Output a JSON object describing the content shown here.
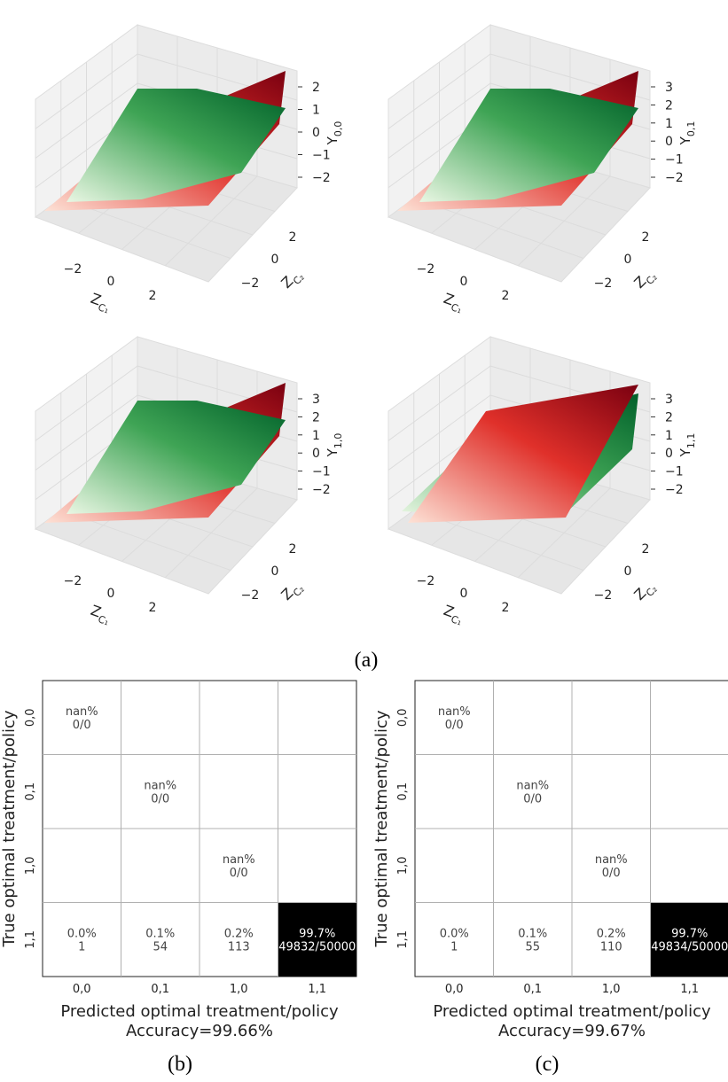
{
  "captions": {
    "a": "(a)",
    "b": "(b)",
    "c": "(c)"
  },
  "surface_plots": [
    {
      "zlabel_main": "Y",
      "zlabel_sub": "0,0",
      "zticks": [
        "2",
        "1",
        "0",
        "−1",
        "−2"
      ]
    },
    {
      "zlabel_main": "Y",
      "zlabel_sub": "0,1",
      "zticks": [
        "3",
        "2",
        "1",
        "0",
        "−1",
        "−2"
      ]
    },
    {
      "zlabel_main": "Y",
      "zlabel_sub": "1,0",
      "zticks": [
        "3",
        "2",
        "1",
        "0",
        "−1",
        "−2"
      ]
    },
    {
      "zlabel_main": "Y",
      "zlabel_sub": "1,1",
      "zticks": [
        "3",
        "2",
        "1",
        "0",
        "−1",
        "−2"
      ]
    }
  ],
  "surface_axes": {
    "xlabel_main": "Z",
    "xlabel_sub": "C₁",
    "ylabel_main": "Z",
    "ylabel_sub": "C₂",
    "xticks": [
      "−2",
      "0",
      "2"
    ],
    "yticks": [
      "2",
      "0",
      "−2"
    ]
  },
  "colors": {
    "green_dark": "#00602a",
    "green_mid": "#3fa455",
    "green_light": "#eaf7e4",
    "red_dark": "#7a0010",
    "red_mid": "#e0302a",
    "red_light": "#fde2d6",
    "cell_dark": "#000000",
    "grid": "#b0b0b0",
    "text": "#444444"
  },
  "chart_data": [
    {
      "type": "heatmap",
      "panel": "b",
      "xlabel": "Predicted optimal treatment/policy",
      "ylabel": "True optimal treatment/policy",
      "footer": "Accuracy=99.66%",
      "accuracy": 99.66,
      "categories": [
        "0,0",
        "0,1",
        "1,0",
        "1,1"
      ],
      "cells": [
        {
          "row": 0,
          "col": 0,
          "pct": "nan%",
          "count": "0/0"
        },
        {
          "row": 1,
          "col": 1,
          "pct": "nan%",
          "count": "0/0"
        },
        {
          "row": 2,
          "col": 2,
          "pct": "nan%",
          "count": "0/0"
        },
        {
          "row": 3,
          "col": 0,
          "pct": "0.0%",
          "count": "1"
        },
        {
          "row": 3,
          "col": 1,
          "pct": "0.1%",
          "count": "54"
        },
        {
          "row": 3,
          "col": 2,
          "pct": "0.2%",
          "count": "113"
        },
        {
          "row": 3,
          "col": 3,
          "pct": "99.7%",
          "count": "49832/50000",
          "dark": true
        }
      ]
    },
    {
      "type": "heatmap",
      "panel": "c",
      "xlabel": "Predicted optimal treatment/policy",
      "ylabel": "True optimal treatment/policy",
      "footer": "Accuracy=99.67%",
      "accuracy": 99.67,
      "categories": [
        "0,0",
        "0,1",
        "1,0",
        "1,1"
      ],
      "cells": [
        {
          "row": 0,
          "col": 0,
          "pct": "nan%",
          "count": "0/0"
        },
        {
          "row": 1,
          "col": 1,
          "pct": "nan%",
          "count": "0/0"
        },
        {
          "row": 2,
          "col": 2,
          "pct": "nan%",
          "count": "0/0"
        },
        {
          "row": 3,
          "col": 0,
          "pct": "0.0%",
          "count": "1"
        },
        {
          "row": 3,
          "col": 1,
          "pct": "0.1%",
          "count": "55"
        },
        {
          "row": 3,
          "col": 2,
          "pct": "0.2%",
          "count": "110"
        },
        {
          "row": 3,
          "col": 3,
          "pct": "99.7%",
          "count": "49834/50000",
          "dark": true
        }
      ]
    }
  ]
}
